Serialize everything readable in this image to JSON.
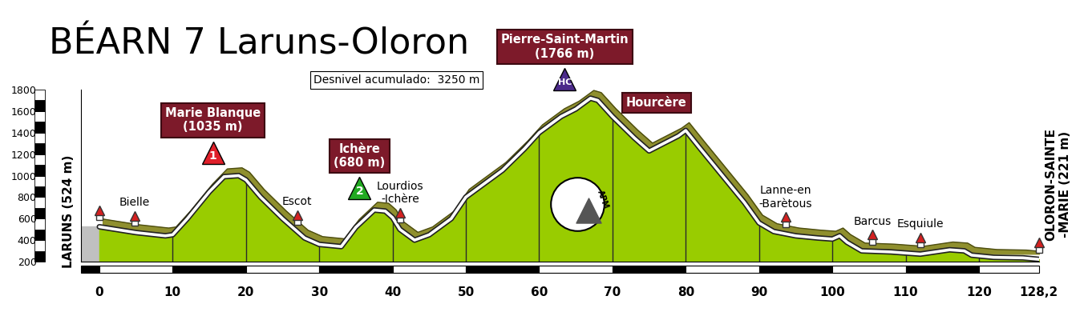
{
  "chart_data": {
    "type": "area",
    "title": "BÉARN 7 Laruns-Oloron",
    "subtitle": "Desnivel acumulado:  3250 m",
    "x": [
      0,
      5,
      9,
      10,
      12,
      15,
      17,
      19,
      20,
      22,
      25,
      28,
      30,
      33,
      35,
      37.5,
      39,
      40,
      41,
      43,
      45,
      48,
      50,
      55,
      58,
      60,
      63,
      65,
      67,
      68,
      70,
      73,
      75,
      77,
      79,
      80,
      82,
      85,
      88,
      90,
      92,
      95,
      98,
      100,
      101,
      102,
      104,
      108,
      110,
      112,
      115,
      116,
      118,
      119,
      122,
      126,
      128.2
    ],
    "values": [
      524,
      470,
      440,
      450,
      600,
      850,
      990,
      1000,
      960,
      800,
      600,
      420,
      360,
      340,
      520,
      680,
      670,
      610,
      500,
      400,
      450,
      600,
      800,
      1050,
      1250,
      1400,
      1550,
      1620,
      1720,
      1700,
      1550,
      1350,
      1230,
      1300,
      1370,
      1420,
      1250,
      1000,
      750,
      560,
      480,
      440,
      420,
      410,
      440,
      380,
      300,
      290,
      280,
      270,
      300,
      310,
      300,
      260,
      240,
      235,
      221
    ],
    "color": "#99cc00",
    "grid": false,
    "xlim": [
      -2.5,
      128.2
    ],
    "xticks": [
      0,
      10,
      20,
      30,
      40,
      50,
      60,
      70,
      80,
      90,
      100,
      110,
      120,
      {
        "value": 128.2,
        "label": "128,2"
      }
    ],
    "ylim": [
      200,
      1800
    ],
    "yticks": [
      200,
      400,
      600,
      800,
      1000,
      1200,
      1400,
      1600,
      1800
    ],
    "start_label": "LARUNS (524 m)",
    "finish_label": "OLORON-SAINTE\n-MARIE (221 m)",
    "climbs": [
      {
        "name": "Marie Blanque",
        "altitude_label": "(1035 m)",
        "km": 15.5,
        "category": "1",
        "color": "#e0202a"
      },
      {
        "name": "Ichère",
        "altitude_label": "(680 m)",
        "km": 35.5,
        "category": "2",
        "color": "#22aa22"
      },
      {
        "name": "Pierre-Saint-Martin",
        "altitude_label": "(1766 m)",
        "km": 63.5,
        "category": "HC",
        "color": "#4b2a8a"
      },
      {
        "name": "Hourcère",
        "km": 76
      }
    ],
    "towns": [
      {
        "name": "Bielle",
        "km": 4.8
      },
      {
        "name": "Escot",
        "km": 27
      },
      {
        "name": "Lourdios\n-Ichère",
        "km": 41
      },
      {
        "name": "Lanne-en\n-Barètous",
        "km": 93.6
      },
      {
        "name": "Barcus",
        "km": 105.5
      },
      {
        "name": "Esquiule",
        "km": 112
      }
    ],
    "logo_text": "APM"
  }
}
